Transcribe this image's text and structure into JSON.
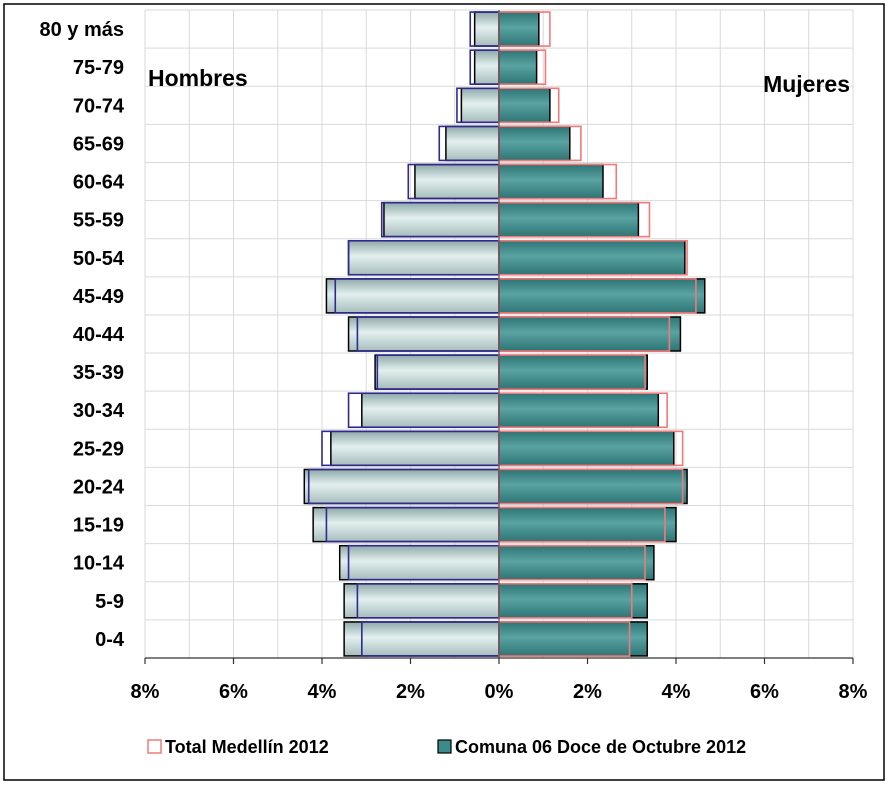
{
  "chart_data": {
    "type": "bar",
    "orientation": "horizontal",
    "title": "",
    "categories": [
      "0-4",
      "5-9",
      "10-14",
      "15-19",
      "20-24",
      "25-29",
      "30-34",
      "35-39",
      "40-44",
      "45-49",
      "50-54",
      "55-59",
      "60-64",
      "65-69",
      "70-74",
      "75-79",
      "80 y más"
    ],
    "side_labels": {
      "left": "Hombres",
      "right": "Mujeres"
    },
    "xlim": [
      -8,
      8
    ],
    "xticks": [
      "8%",
      "6%",
      "4%",
      "2%",
      "0%",
      "2%",
      "4%",
      "6%",
      "8%"
    ],
    "grid": true,
    "legend_position": "bottom",
    "series": [
      {
        "name": "Comuna 06 Doce de Octubre 2012",
        "style": "filled",
        "hombres": [
          3.5,
          3.5,
          3.6,
          4.2,
          4.4,
          3.8,
          3.1,
          2.8,
          3.4,
          3.9,
          3.4,
          2.6,
          1.9,
          1.2,
          0.85,
          0.55,
          0.55
        ],
        "mujeres": [
          3.35,
          3.35,
          3.5,
          4.0,
          4.25,
          3.95,
          3.6,
          3.35,
          4.1,
          4.65,
          4.2,
          3.15,
          2.35,
          1.6,
          1.15,
          0.85,
          0.9
        ]
      },
      {
        "name": "Total Medellín 2012",
        "style": "outline",
        "hombres": [
          3.1,
          3.2,
          3.4,
          3.9,
          4.3,
          4.0,
          3.4,
          2.75,
          3.2,
          3.7,
          3.4,
          2.65,
          2.05,
          1.35,
          0.95,
          0.65,
          0.65
        ],
        "mujeres": [
          2.95,
          3.0,
          3.3,
          3.75,
          4.15,
          4.15,
          3.8,
          3.3,
          3.85,
          4.45,
          4.25,
          3.4,
          2.65,
          1.85,
          1.35,
          1.05,
          1.15
        ]
      }
    ]
  },
  "colors": {
    "comuna_fill": "#3c8a8a",
    "hombres_fill_light": "#dce9e9",
    "hombres_fill_dark": "#8fa9a9",
    "medellin_hombres_outline": "#2f2a8f",
    "medellin_mujeres_outline": "#f07a7a",
    "grid": "#d9d9d9"
  }
}
